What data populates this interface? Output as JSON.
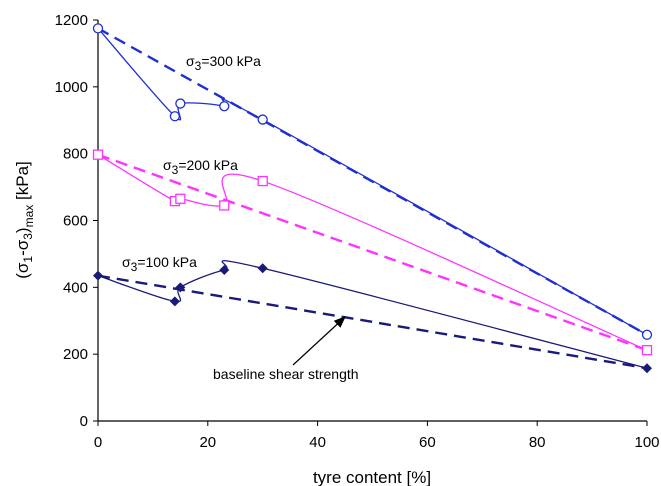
{
  "chart_data": {
    "type": "line",
    "xlabel": "tyre content [%]",
    "ylabel": {
      "main": "(σ",
      "s1": "1",
      "mid": "-σ",
      "s3": "3",
      "close": ")",
      "sub": "max",
      "unit": " [kPa]"
    },
    "xlim": [
      0,
      100
    ],
    "ylim": [
      0,
      1200
    ],
    "x_ticks": [
      "0",
      "20",
      "40",
      "60",
      "80",
      "100"
    ],
    "y_ticks": [
      "0",
      "200",
      "400",
      "600",
      "800",
      "1000",
      "1200"
    ],
    "grid": false,
    "series": [
      {
        "group": "σ3=300 kPa",
        "kind": "measured",
        "color": "#1f2fd0",
        "marker": "circle",
        "x": [
          0,
          14,
          15,
          23,
          30,
          100
        ],
        "y": [
          1175,
          912,
          950,
          942,
          902,
          258
        ]
      },
      {
        "group": "σ3=300 kPa",
        "kind": "baseline",
        "color": "#1f2fd0",
        "x": [
          0,
          100
        ],
        "y": [
          1175,
          258
        ]
      },
      {
        "group": "σ3=200 kPa",
        "kind": "measured",
        "color": "#ff33ff",
        "marker": "square",
        "x": [
          0,
          14,
          15,
          23,
          30,
          100
        ],
        "y": [
          797,
          658,
          665,
          645,
          718,
          212
        ]
      },
      {
        "group": "σ3=200 kPa",
        "kind": "baseline",
        "color": "#ff33ff",
        "x": [
          0,
          100
        ],
        "y": [
          797,
          212
        ]
      },
      {
        "group": "σ3=100 kPa",
        "kind": "measured",
        "color": "#1a1a7a",
        "marker": "diamond",
        "x": [
          0,
          14,
          15,
          23,
          30,
          100
        ],
        "y": [
          435,
          358,
          400,
          452,
          457,
          158
        ]
      },
      {
        "group": "σ3=100 kPa",
        "kind": "baseline",
        "color": "#1a1a7a",
        "x": [
          0,
          100
        ],
        "y": [
          435,
          158
        ]
      }
    ],
    "annotations": [
      {
        "base": "σ",
        "sub": "3",
        "rest": "=300 kPa"
      },
      {
        "base": "σ",
        "sub": "3",
        "rest": "=200 kPa"
      },
      {
        "base": "σ",
        "sub": "3",
        "rest": "=100 kPa"
      },
      {
        "text": "baseline shear strength"
      }
    ]
  }
}
